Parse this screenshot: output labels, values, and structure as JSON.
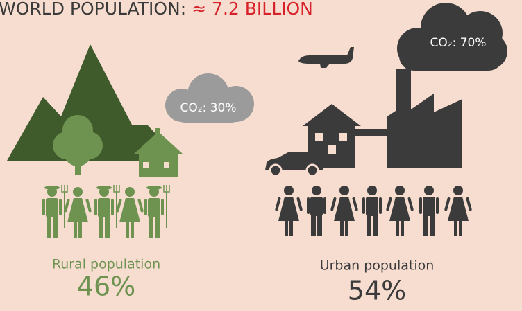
{
  "header": {
    "title": "WORLD POPULATION:",
    "highlight": "≈ 7.2 BILLION"
  },
  "rural": {
    "co2": "CO₂: 30%",
    "label": "Rural population",
    "share": "46%"
  },
  "urban": {
    "co2": "CO₂: 70%",
    "label": "Urban population",
    "share": "54%"
  }
}
